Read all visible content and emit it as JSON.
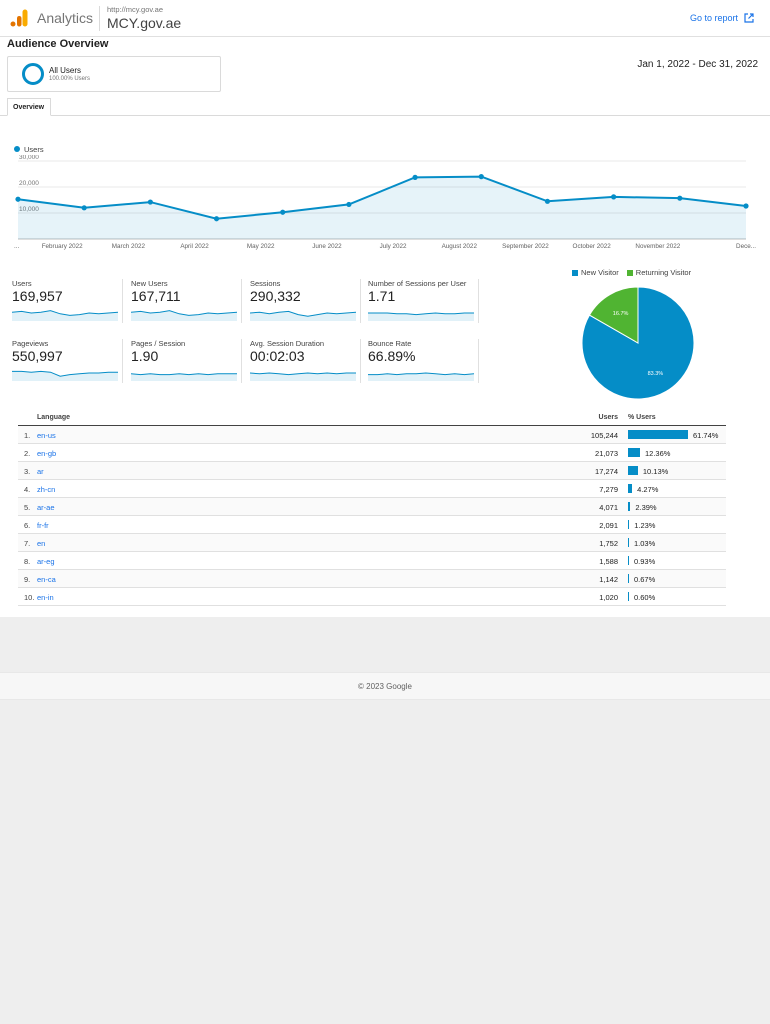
{
  "header": {
    "brand": "Analytics",
    "url": "http://mcy.gov.ae",
    "property": "MCY.gov.ae",
    "go_to_report": "Go to report"
  },
  "title": "Audience Overview",
  "segment": {
    "name": "All Users",
    "sub": "100.00% Users"
  },
  "date_range": "Jan 1, 2022 - Dec 31, 2022",
  "tabs": [
    "Overview"
  ],
  "colors": {
    "accent": "#058dc7",
    "returning": "#50b432",
    "link": "#1a73e8"
  },
  "chart_data": [
    {
      "type": "line",
      "series": [
        {
          "name": "Users",
          "values": [
            15300,
            12000,
            14200,
            7800,
            10300,
            13300,
            23700,
            24000,
            14500,
            16200,
            15700,
            12700
          ]
        }
      ],
      "x_labels": [
        "...",
        "February 2022",
        "March 2022",
        "April 2022",
        "May 2022",
        "June 2022",
        "July 2022",
        "August 2022",
        "September 2022",
        "October 2022",
        "November 2022",
        "Dece..."
      ],
      "y_ticks": [
        "30,000",
        "20,000",
        "10,000"
      ],
      "ylim": [
        0,
        30000
      ],
      "area": true,
      "grid": true
    },
    {
      "type": "pie",
      "labels": [
        "New Visitor",
        "Returning Visitor"
      ],
      "values": [
        83.3,
        16.7
      ],
      "slice_labels": [
        "83.3%",
        "16.7%"
      ],
      "colors": [
        "#058dc7",
        "#50b432"
      ],
      "legend": "top"
    }
  ],
  "metrics": [
    {
      "label": "Users",
      "value": "169,957",
      "trend": [
        0.55,
        0.6,
        0.5,
        0.55,
        0.65,
        0.45,
        0.35,
        0.4,
        0.5,
        0.45,
        0.5,
        0.55
      ]
    },
    {
      "label": "New Users",
      "value": "167,711",
      "trend": [
        0.55,
        0.6,
        0.5,
        0.55,
        0.65,
        0.45,
        0.35,
        0.4,
        0.5,
        0.45,
        0.5,
        0.55
      ]
    },
    {
      "label": "Sessions",
      "value": "290,332",
      "trend": [
        0.5,
        0.55,
        0.45,
        0.55,
        0.6,
        0.4,
        0.3,
        0.4,
        0.5,
        0.45,
        0.5,
        0.55
      ]
    },
    {
      "label": "Number of Sessions per User",
      "value": "1.71",
      "trend": [
        0.5,
        0.5,
        0.5,
        0.45,
        0.45,
        0.4,
        0.45,
        0.5,
        0.45,
        0.45,
        0.5,
        0.5
      ]
    },
    {
      "label": "Pageviews",
      "value": "550,997",
      "trend": [
        0.6,
        0.6,
        0.55,
        0.6,
        0.55,
        0.3,
        0.4,
        0.45,
        0.5,
        0.5,
        0.55,
        0.55
      ]
    },
    {
      "label": "Pages / Session",
      "value": "1.90",
      "trend": [
        0.45,
        0.4,
        0.45,
        0.4,
        0.4,
        0.45,
        0.4,
        0.45,
        0.4,
        0.45,
        0.45,
        0.45
      ]
    },
    {
      "label": "Avg. Session Duration",
      "value": "00:02:03",
      "trend": [
        0.5,
        0.45,
        0.5,
        0.45,
        0.4,
        0.45,
        0.5,
        0.45,
        0.5,
        0.45,
        0.5,
        0.5
      ]
    },
    {
      "label": "Bounce Rate",
      "value": "66.89%",
      "trend": [
        0.4,
        0.4,
        0.45,
        0.4,
        0.45,
        0.45,
        0.5,
        0.45,
        0.4,
        0.45,
        0.4,
        0.45
      ]
    }
  ],
  "table": {
    "headers": {
      "language": "Language",
      "users": "Users",
      "pct": "% Users"
    },
    "rows": [
      {
        "idx": "1.",
        "lang": "en-us",
        "users": "105,244",
        "pct": "61.74%",
        "share": 61.74
      },
      {
        "idx": "2.",
        "lang": "en-gb",
        "users": "21,073",
        "pct": "12.36%",
        "share": 12.36
      },
      {
        "idx": "3.",
        "lang": "ar",
        "users": "17,274",
        "pct": "10.13%",
        "share": 10.13
      },
      {
        "idx": "4.",
        "lang": "zh-cn",
        "users": "7,279",
        "pct": "4.27%",
        "share": 4.27
      },
      {
        "idx": "5.",
        "lang": "ar-ae",
        "users": "4,071",
        "pct": "2.39%",
        "share": 2.39
      },
      {
        "idx": "6.",
        "lang": "fr-fr",
        "users": "2,091",
        "pct": "1.23%",
        "share": 1.23
      },
      {
        "idx": "7.",
        "lang": "en",
        "users": "1,752",
        "pct": "1.03%",
        "share": 1.03
      },
      {
        "idx": "8.",
        "lang": "ar-eg",
        "users": "1,588",
        "pct": "0.93%",
        "share": 0.93
      },
      {
        "idx": "9.",
        "lang": "en-ca",
        "users": "1,142",
        "pct": "0.67%",
        "share": 0.67
      },
      {
        "idx": "10.",
        "lang": "en-in",
        "users": "1,020",
        "pct": "0.60%",
        "share": 0.6
      }
    ]
  },
  "footer": "© 2023 Google"
}
